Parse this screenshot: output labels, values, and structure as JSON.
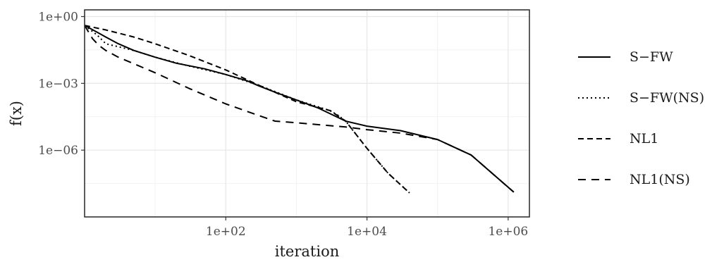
{
  "chart_data": {
    "type": "line",
    "xlabel": "iteration",
    "ylabel": "f(x)",
    "x_scale": "log10",
    "y_scale": "log10",
    "xlim": [
      1,
      2000000
    ],
    "ylim": [
      1e-09,
      2
    ],
    "x_ticks": [
      {
        "value": 100,
        "label": "1e+02"
      },
      {
        "value": 10000,
        "label": "1e+04"
      },
      {
        "value": 1000000,
        "label": "1e+06"
      }
    ],
    "y_ticks": [
      {
        "value": 1,
        "label": "1e+00"
      },
      {
        "value": 0.001,
        "label": "1e−03"
      },
      {
        "value": 1e-06,
        "label": "1e−06"
      }
    ],
    "grid": true,
    "legend_position": "right",
    "series": [
      {
        "name": "S−FW",
        "dash": "solid",
        "x": [
          1,
          1.5,
          2,
          3,
          5,
          10,
          20,
          50,
          100,
          200,
          300,
          500,
          1000,
          2000,
          5000,
          10000,
          30000,
          100000,
          300000,
          1200000
        ],
        "y": [
          0.4,
          0.2,
          0.12,
          0.06,
          0.03,
          0.015,
          0.008,
          0.0045,
          0.0025,
          0.0013,
          0.00075,
          0.0004,
          0.00018,
          8e-05,
          2e-05,
          1.2e-05,
          7.5e-06,
          3e-06,
          6e-07,
          1.3e-08
        ]
      },
      {
        "name": "S−FW(NS)",
        "dash": "dotted",
        "x": [
          1,
          1.5,
          2,
          5,
          10,
          30,
          100,
          300,
          1000,
          3000,
          4000,
          5000,
          10000,
          20000,
          40000
        ],
        "y": [
          0.4,
          0.15,
          0.06,
          0.03,
          0.015,
          0.006,
          0.0025,
          0.0008,
          0.00018,
          6e-05,
          3.5e-05,
          2e-05,
          1.2e-06,
          9e-08,
          1.2e-08
        ]
      },
      {
        "name": "NL1",
        "dash": "dashed",
        "x": [
          1,
          2,
          5,
          10,
          30,
          100,
          300,
          1000,
          3000,
          5000,
          10000,
          20000,
          40000
        ],
        "y": [
          0.4,
          0.25,
          0.12,
          0.06,
          0.018,
          0.004,
          0.0008,
          0.00015,
          6e-05,
          2e-05,
          1.2e-06,
          9e-08,
          1.2e-08
        ]
      },
      {
        "name": "NL1(NS)",
        "dash": "longdash",
        "x": [
          1,
          1.3,
          1.6,
          2,
          3,
          10,
          30,
          100,
          300,
          500,
          1000,
          5000,
          10000,
          30000,
          100000,
          300000,
          1200000
        ],
        "y": [
          0.4,
          0.1,
          0.05,
          0.03,
          0.015,
          0.003,
          0.0006,
          0.00012,
          3.5e-05,
          2e-05,
          1.7e-05,
          1.1e-05,
          8.3e-06,
          5.8e-06,
          3e-06,
          6e-07,
          1.3e-08
        ]
      }
    ]
  }
}
